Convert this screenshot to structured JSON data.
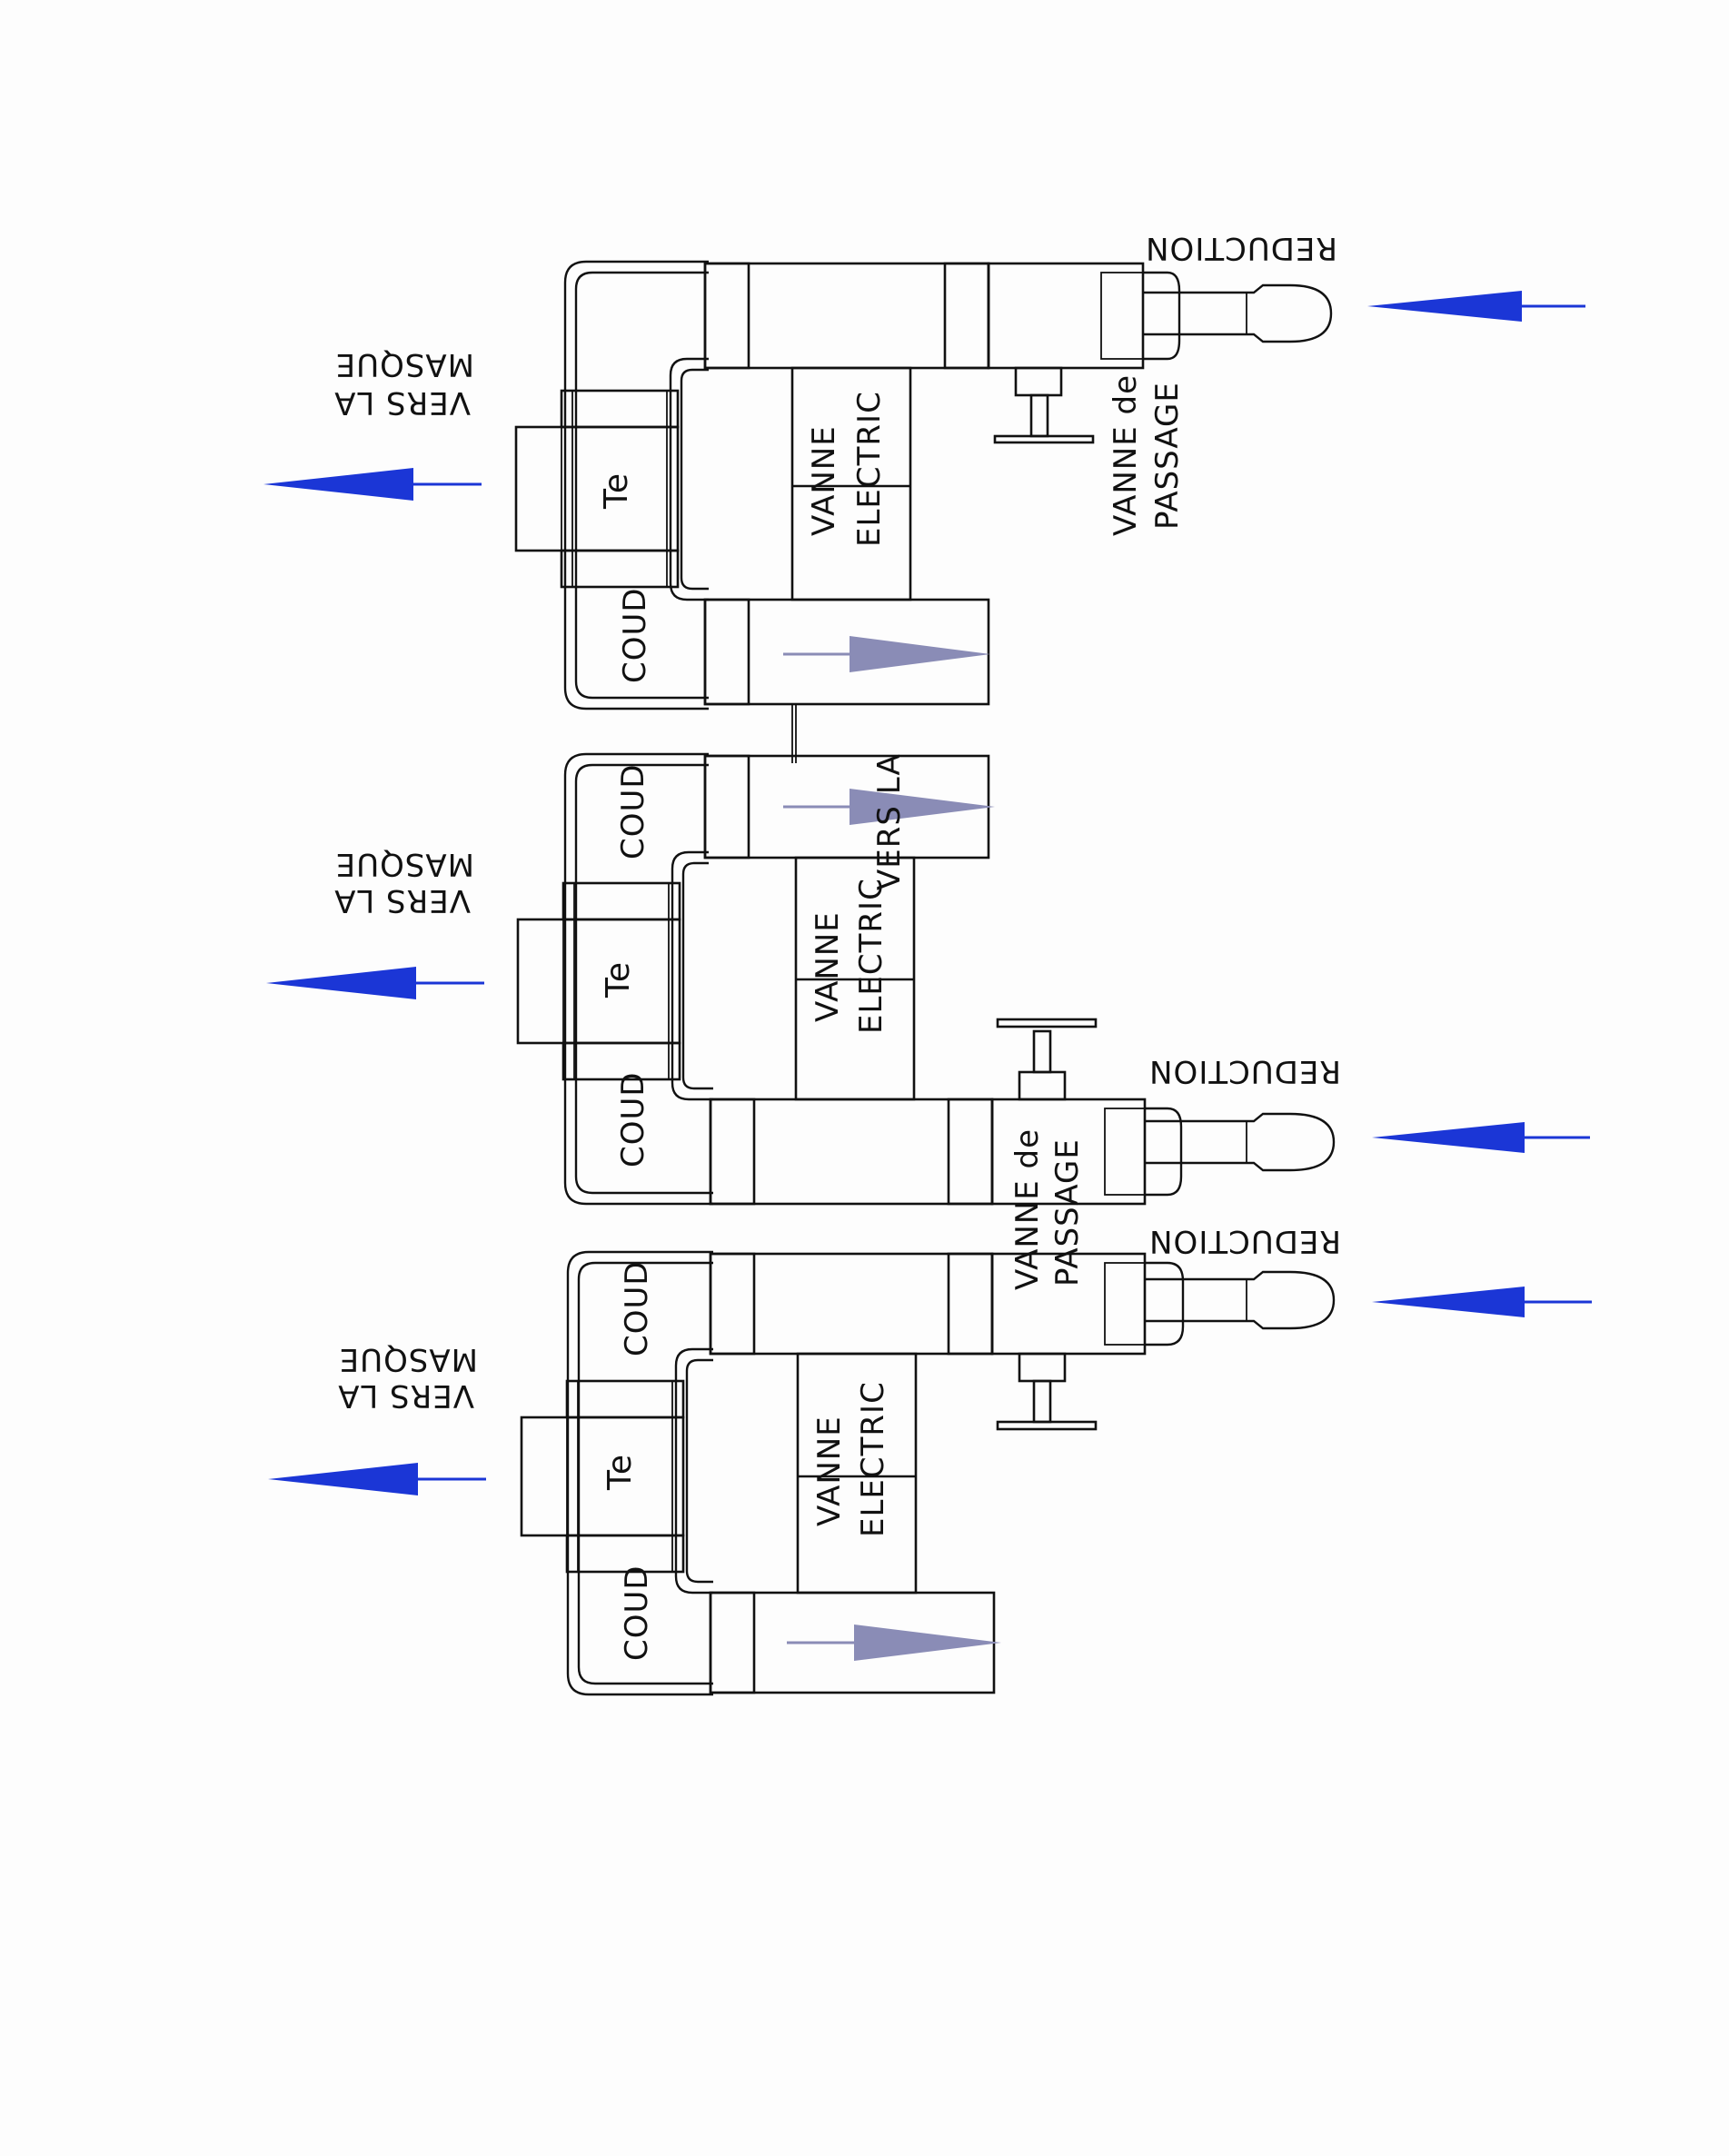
{
  "labels": {
    "coud": "COUD",
    "te": "Te",
    "vanne_electric_1": "VANNE",
    "vanne_electric_2": "ELECTRIC",
    "vanne_passage_1": "VANNE de",
    "vanne_passage_2": "PASSAGE",
    "reduction": "REDUCTION",
    "vers_la_1": "VERS LA",
    "vers_la_2": "MASQUE",
    "vers_la_short": "VERS LA"
  },
  "colors": {
    "flow_arrow": "#1b36d6",
    "internal_arrow": "#8a8cb6",
    "line": "#111111"
  },
  "icons": [
    "left-arrow-icon",
    "flow-arrow-icon",
    "valve-handle-icon"
  ]
}
